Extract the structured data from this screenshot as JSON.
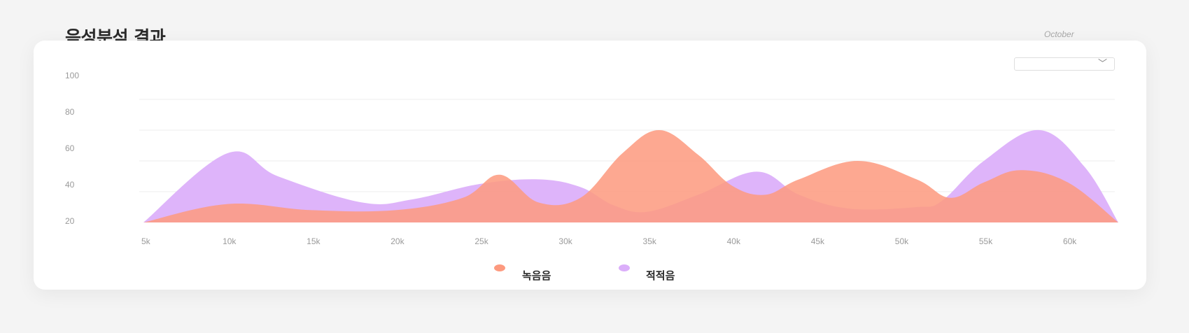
{
  "header": {
    "title": "음성분석 결과",
    "month": "October"
  },
  "controls": {
    "dropdown_value": ""
  },
  "colors": {
    "series_1": "#fd9a7f",
    "series_2": "#dbaefa",
    "grid": "#ececec"
  },
  "chart_data": {
    "type": "area",
    "title": "",
    "xlabel": "",
    "ylabel": "",
    "ylim": [
      20,
      100
    ],
    "xlim": [
      5,
      63
    ],
    "y_ticks": [
      100,
      80,
      60,
      40,
      20
    ],
    "x_ticks": [
      "5k",
      "10k",
      "15k",
      "20k",
      "25k",
      "30k",
      "35k",
      "40k",
      "45k",
      "50k",
      "55k",
      "60k"
    ],
    "x_tick_values": [
      5,
      10,
      15,
      20,
      25,
      30,
      35,
      40,
      45,
      50,
      55,
      60
    ],
    "grid": true,
    "legend_position": "bottom",
    "series": [
      {
        "name": "녹음음",
        "color": "#fd9a7f",
        "x": [
          5,
          10,
          15,
          20,
          24,
          26.2,
          28.5,
          31,
          33.5,
          35.7,
          38,
          40,
          42,
          44,
          47.5,
          51,
          53,
          55,
          57.2,
          60,
          63
        ],
        "values": [
          20,
          32,
          28,
          28,
          36,
          51,
          33,
          36,
          65,
          80,
          64,
          44,
          38,
          48,
          60,
          48,
          36,
          46,
          54,
          46,
          20
        ]
      },
      {
        "name": "적적음",
        "color": "#dbaefa",
        "x": [
          5,
          10,
          13,
          18,
          21,
          25,
          28.5,
          31,
          33,
          35,
          38,
          41.5,
          44,
          47,
          51,
          52.5,
          55,
          58.3,
          61,
          63
        ],
        "values": [
          20,
          65,
          50,
          33,
          35,
          45,
          48,
          43,
          31,
          27,
          38,
          53,
          38,
          29,
          30,
          34,
          60,
          80,
          56,
          20
        ]
      }
    ]
  }
}
